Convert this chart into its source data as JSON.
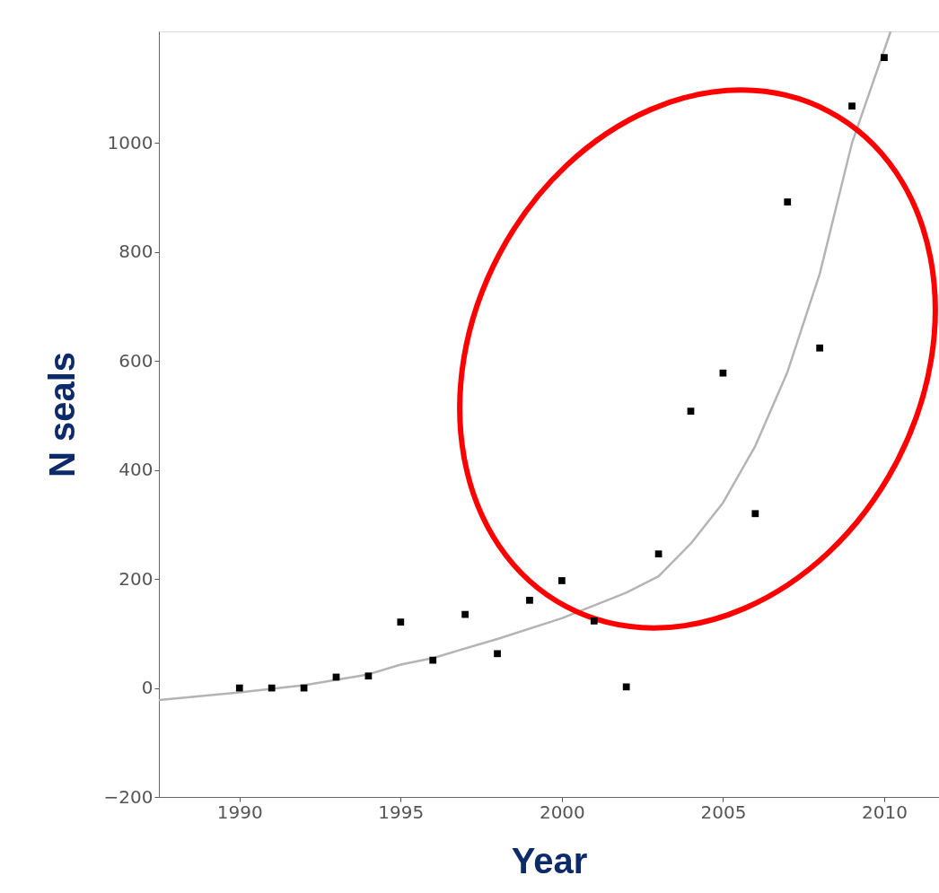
{
  "chart_data": {
    "type": "scatter",
    "xlabel": "Year",
    "ylabel": "N seals",
    "xlim": [
      1987.5,
      2011.7
    ],
    "xticks": [
      1990,
      1995,
      2000,
      2005,
      2010
    ],
    "ylim": [
      -200,
      1205
    ],
    "yticks": [
      -200,
      0,
      200,
      400,
      600,
      800,
      1000
    ],
    "grid": false,
    "series": [
      {
        "type": "line",
        "color": "#b4b4b4",
        "x": [
          1987.5,
          1990,
          1992,
          1994,
          1995,
          1996,
          1998,
          2000,
          2002,
          2003,
          2004,
          2005,
          2006,
          2007,
          2008,
          2009,
          2010.2
        ],
        "values": [
          -22,
          -8,
          5,
          25,
          43,
          55,
          90,
          128,
          175,
          205,
          265,
          340,
          444,
          580,
          760,
          1000,
          1205
        ]
      },
      {
        "color": "#000000",
        "marker": "square",
        "x": [
          1990,
          1991,
          1992,
          1993,
          1994,
          1995,
          1996,
          1997,
          1998,
          1999,
          2000,
          2001,
          2002,
          2003,
          2004,
          2005,
          2006,
          2007,
          2008,
          2009,
          2010
        ],
        "values": [
          0,
          0,
          0,
          20,
          22,
          121,
          51,
          135,
          63,
          161,
          197,
          123,
          2,
          246,
          508,
          578,
          320,
          892,
          624,
          1068,
          1157
        ]
      }
    ]
  }
}
